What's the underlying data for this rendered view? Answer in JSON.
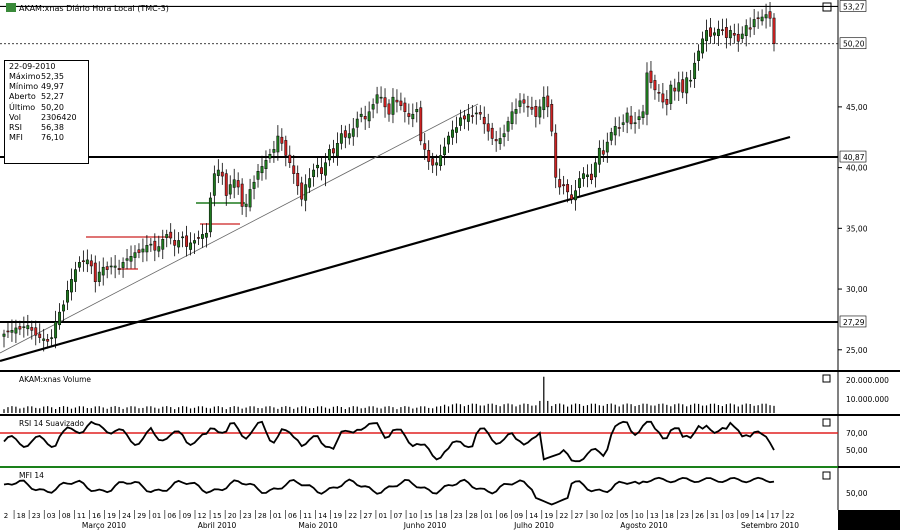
{
  "title": "AKAM:xnas Diário Hora Local (TMC-3)",
  "info_box": {
    "date": "22-09-2010",
    "rows": [
      {
        "label": "Máximo",
        "value": "52,35"
      },
      {
        "label": "Mínimo",
        "value": "49,97"
      },
      {
        "label": "Aberto",
        "value": "52,27"
      },
      {
        "label": "Último",
        "value": "50,20"
      },
      {
        "label": "Vol",
        "value": "2306420"
      },
      {
        "label": "RSI",
        "value": "56,38"
      },
      {
        "label": "MFI",
        "value": "76,10"
      }
    ]
  },
  "colors": {
    "background": "#000000",
    "up_candle": "#1f7a1f",
    "down_candle": "#cc2222",
    "panel_bg": "#ffffff",
    "rsi_level": "#e02020",
    "green_level": "#22aa22"
  },
  "chart_data": [
    {
      "type": "candlestick",
      "title": "AKAM:xnas Diário Hora Local (TMC-3)",
      "ylim": [
        23.5,
        53.8
      ],
      "y_ticks": [
        "25,00",
        "30,00",
        "35,00",
        "40,00",
        "45,00"
      ],
      "price_labels": [
        {
          "text": "53,27",
          "value": 53.27
        },
        {
          "text": "50,20",
          "value": 50.2
        },
        {
          "text": "40,87",
          "value": 40.87
        },
        {
          "text": "27,29",
          "value": 27.29
        }
      ],
      "horizontal_lines": [
        53.27,
        50.2,
        40.87,
        27.29
      ],
      "close": [
        26.3,
        26.5,
        26.6,
        26.8,
        26.7,
        26.9,
        27.0,
        26.6,
        26.2,
        26.0,
        25.9,
        25.7,
        26.0,
        27.3,
        28.1,
        28.7,
        29.9,
        30.8,
        31.6,
        32.2,
        32.3,
        32.4,
        31.9,
        30.6,
        31.4,
        31.8,
        31.6,
        31.9,
        31.9,
        31.6,
        32.2,
        32.5,
        32.7,
        33.0,
        33.0,
        33.3,
        33.6,
        33.7,
        33.2,
        33.5,
        34.1,
        34.5,
        34.2,
        33.6,
        34.0,
        34.3,
        33.5,
        33.8,
        34.0,
        34.2,
        34.5,
        34.6,
        37.5,
        39.5,
        39.8,
        39.3,
        37.7,
        38.6,
        39.0,
        38.4,
        36.8,
        37.0,
        38.2,
        38.8,
        39.7,
        40.1,
        40.6,
        41.1,
        41.5,
        42.6,
        42.0,
        41.0,
        40.4,
        39.5,
        38.5,
        37.4,
        38.6,
        39.1,
        39.8,
        40.2,
        39.5,
        40.4,
        41.5,
        41.2,
        42.0,
        42.8,
        42.5,
        42.8,
        43.2,
        44.0,
        44.4,
        44.0,
        44.6,
        45.2,
        46.0,
        45.8,
        45.0,
        44.4,
        45.8,
        45.4,
        45.1,
        44.6,
        44.2,
        44.4,
        44.8,
        42.2,
        41.5,
        40.5,
        40.2,
        40.4,
        41.0,
        41.7,
        42.6,
        43.1,
        43.3,
        44.1,
        44.0,
        44.4,
        44.2,
        44.5,
        44.4,
        43.6,
        43.0,
        42.4,
        42.2,
        42.4,
        42.8,
        43.8,
        44.6,
        44.8,
        45.5,
        45.3,
        45.0,
        44.8,
        44.2,
        45.0,
        45.8,
        45.0,
        43.0,
        39.2,
        38.4,
        38.5,
        38.0,
        37.4,
        38.1,
        39.1,
        39.5,
        39.4,
        39.0,
        40.4,
        41.6,
        41.1,
        42.1,
        42.9,
        43.4,
        43.3,
        43.7,
        44.5,
        43.6,
        43.7,
        44.2,
        44.6,
        47.8,
        47.0,
        46.4,
        46.2,
        45.4,
        45.2,
        46.8,
        46.3,
        47.0,
        46.2,
        47.4,
        47.2,
        48.6,
        49.6,
        50.6,
        51.3,
        50.8,
        51.1,
        51.4,
        51.3,
        50.7,
        51.3,
        50.9,
        50.4,
        51.0,
        51.7,
        51.4,
        52.2,
        52.3,
        52.4,
        52.6,
        52.3,
        50.2
      ],
      "x_ticks": [
        "2",
        "18",
        "23",
        "03",
        "08",
        "11",
        "16",
        "19",
        "24",
        "29",
        "01",
        "06",
        "09",
        "12",
        "15",
        "20",
        "23",
        "28",
        "01",
        "06",
        "11",
        "14",
        "19",
        "22",
        "27",
        "01",
        "07",
        "10",
        "15",
        "18",
        "23",
        "28",
        "01",
        "06",
        "09",
        "14",
        "19",
        "22",
        "27",
        "30",
        "02",
        "05",
        "10",
        "13",
        "18",
        "23",
        "26",
        "31",
        "03",
        "09",
        "14",
        "17",
        "22"
      ],
      "months": [
        "Março 2010",
        "Abril 2010",
        "Maio 2010",
        "Junho 2010",
        "Julho 2010",
        "Agosto 2010",
        "Setembro 2010"
      ]
    },
    {
      "type": "bar",
      "title": "AKAM:xnas Volume",
      "y_ticks": [
        "20.000.000",
        "10.000.000"
      ],
      "ylim": [
        0,
        22000000
      ],
      "spike_value": 21000000
    },
    {
      "type": "line",
      "title": "RSI 14 Suavizado",
      "y_ticks": [
        "70,00",
        "50,00"
      ],
      "ylim": [
        30,
        80
      ],
      "level": 70
    },
    {
      "type": "line",
      "title": "MFI 14",
      "y_ticks": [
        "50,00"
      ],
      "ylim": [
        20,
        90
      ]
    }
  ]
}
